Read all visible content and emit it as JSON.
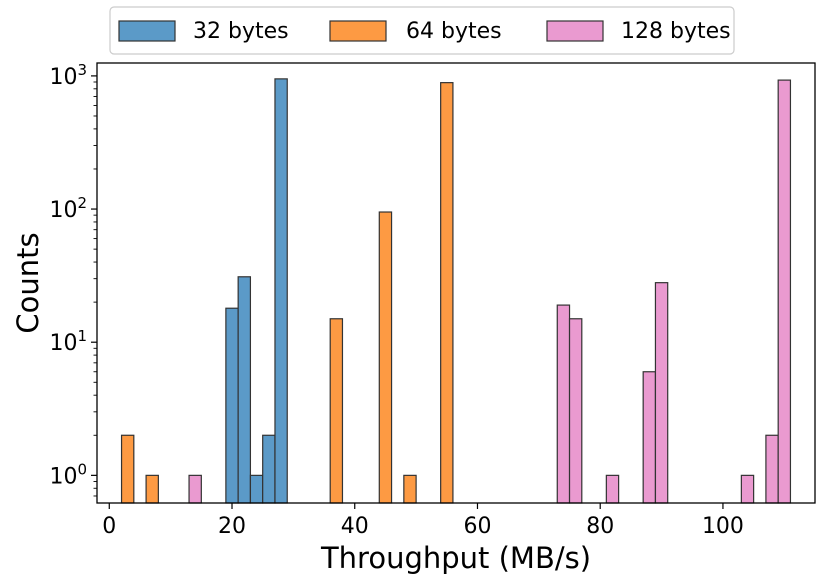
{
  "chart_data": {
    "type": "bar",
    "subtype": "histogram",
    "xlabel": "Throughput (MB/s)",
    "ylabel": "Counts",
    "xlim": [
      -2,
      115
    ],
    "ylim": [
      0.62,
      1250
    ],
    "yscale": "log",
    "xticks": [
      0,
      20,
      40,
      60,
      80,
      100
    ],
    "xtick_labels": [
      "0",
      "20",
      "40",
      "60",
      "80",
      "100"
    ],
    "yticks": [
      1,
      10,
      100,
      1000
    ],
    "ytick_labels": [
      {
        "base": "10",
        "exp": "0"
      },
      {
        "base": "10",
        "exp": "1"
      },
      {
        "base": "10",
        "exp": "2"
      },
      {
        "base": "10",
        "exp": "3"
      }
    ],
    "grid": false,
    "legend_position": "top-center",
    "series": [
      {
        "name": "32 bytes",
        "color": "#5b9ac8",
        "bin_width": 2,
        "bins": [
          {
            "x0": 19,
            "x1": 21,
            "count": 18
          },
          {
            "x0": 21,
            "x1": 23,
            "count": 31
          },
          {
            "x0": 23,
            "x1": 25,
            "count": 1
          },
          {
            "x0": 25,
            "x1": 27,
            "count": 2
          },
          {
            "x0": 27,
            "x1": 29,
            "count": 950
          }
        ]
      },
      {
        "name": "64 bytes",
        "color": "#fd9a43",
        "bins": [
          {
            "x0": 2,
            "x1": 4,
            "count": 2
          },
          {
            "x0": 6,
            "x1": 8,
            "count": 1
          },
          {
            "x0": 36,
            "x1": 38,
            "count": 15
          },
          {
            "x0": 44,
            "x1": 46,
            "count": 95
          },
          {
            "x0": 48,
            "x1": 50,
            "count": 1
          },
          {
            "x0": 54,
            "x1": 56,
            "count": 890
          }
        ]
      },
      {
        "name": "128 bytes",
        "color": "#ea9ad0",
        "bins": [
          {
            "x0": 13,
            "x1": 15,
            "count": 1
          },
          {
            "x0": 73,
            "x1": 75,
            "count": 19
          },
          {
            "x0": 75,
            "x1": 77,
            "count": 15
          },
          {
            "x0": 81,
            "x1": 83,
            "count": 1
          },
          {
            "x0": 87,
            "x1": 89,
            "count": 6
          },
          {
            "x0": 89,
            "x1": 91,
            "count": 28
          },
          {
            "x0": 103,
            "x1": 105,
            "count": 1
          },
          {
            "x0": 107,
            "x1": 109,
            "count": 2
          },
          {
            "x0": 109,
            "x1": 111,
            "count": 930
          }
        ]
      }
    ]
  }
}
